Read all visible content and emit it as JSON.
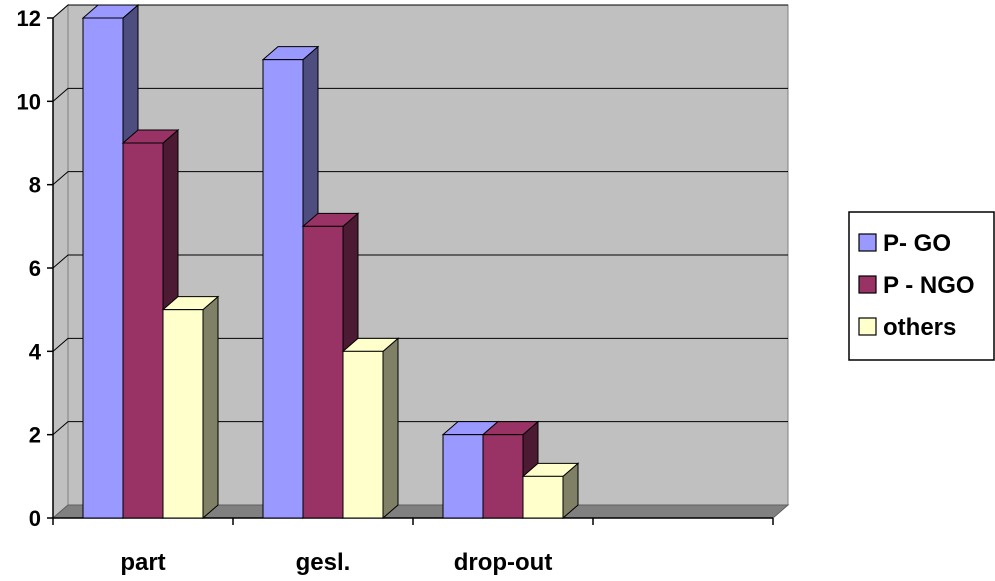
{
  "chart_data": {
    "type": "bar",
    "style": "3d-clustered-column",
    "categories": [
      "part",
      "gesl.",
      "drop-out",
      ""
    ],
    "series": [
      {
        "name": "P- GO",
        "values": [
          12,
          11,
          2,
          null
        ],
        "color": "#9999ff",
        "side_color": "#4d4d80"
      },
      {
        "name": "P - NGO",
        "values": [
          9,
          7,
          2,
          null
        ],
        "color": "#993366",
        "side_color": "#4d1a33"
      },
      {
        "name": "others",
        "values": [
          5,
          4,
          1,
          null
        ],
        "color": "#ffffcc",
        "side_color": "#808066"
      }
    ],
    "ylim": [
      0,
      12
    ],
    "yticks": [
      0,
      2,
      4,
      6,
      8,
      10,
      12
    ],
    "ytick_labels": [
      "0",
      "2",
      "4",
      "6",
      "8",
      "10",
      "12"
    ],
    "grid": true,
    "legend_position": "right",
    "wall_color": "#c0c0c0",
    "floor_color": "#808080",
    "gridline_color": "#000000"
  }
}
